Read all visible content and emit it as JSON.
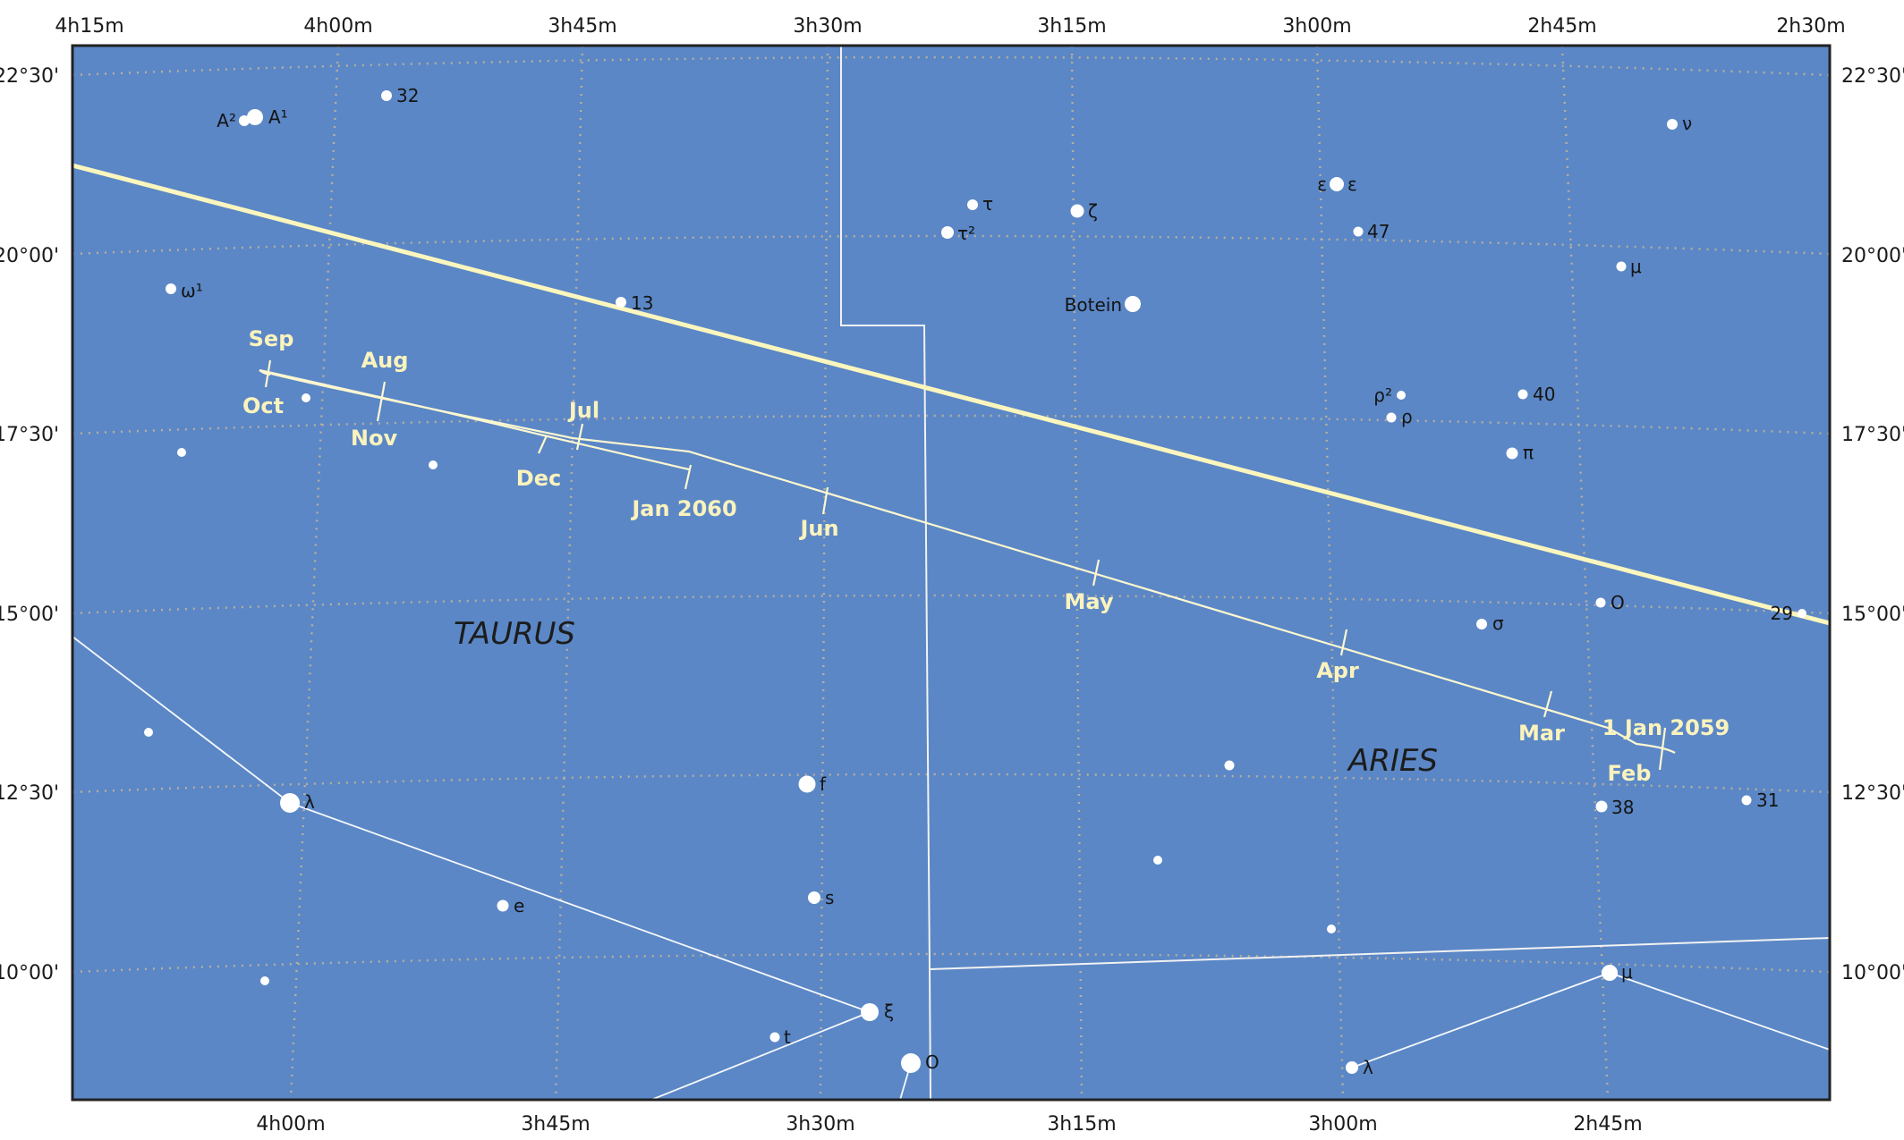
{
  "colors": {
    "sky": "#5b87c6",
    "grid": "#c8b596",
    "ecliptic": "#fbf6bd",
    "path": "#fdf7d0",
    "boundary": "#f2f2f2",
    "star": "#ffffff",
    "text": "#141414",
    "month": "#fbf3bd"
  },
  "ra_labels_top": [
    "4h15m",
    "4h00m",
    "3h45m",
    "3h30m",
    "3h15m",
    "3h00m",
    "2h45m",
    "2h30m"
  ],
  "ra_labels_bottom": [
    "4h00m",
    "3h45m",
    "3h30m",
    "3h15m",
    "3h00m",
    "2h45m"
  ],
  "dec_labels": [
    "22°30'",
    "20°00'",
    "17°30'",
    "15°00'",
    "12°30'",
    "10°00'"
  ],
  "constellations": [
    {
      "name": "TAURUS"
    },
    {
      "name": "ARIES"
    }
  ],
  "stars": [
    {
      "name": "A²",
      "mag": 4.8
    },
    {
      "name": "A¹",
      "mag": 4.3
    },
    {
      "name": "32",
      "mag": 5.6
    },
    {
      "name": "ω¹",
      "mag": 5.5
    },
    {
      "name": "13",
      "mag": 5.7
    },
    {
      "name": "τ",
      "mag": 5.3
    },
    {
      "name": "τ²",
      "mag": 5.1
    },
    {
      "name": "ζ",
      "mag": 4.9
    },
    {
      "name": "Botein",
      "mag": 4.3
    },
    {
      "name": "ε",
      "mag": 4.6
    },
    {
      "name": "ε",
      "mag": 4.6
    },
    {
      "name": "47",
      "mag": 5.8
    },
    {
      "name": "ν",
      "mag": 5.4
    },
    {
      "name": "μ",
      "mag": 5.7
    },
    {
      "name": "ρ²",
      "mag": 5.9
    },
    {
      "name": "ρ",
      "mag": 5.6
    },
    {
      "name": "40",
      "mag": 5.8
    },
    {
      "name": "π",
      "mag": 5.2
    },
    {
      "name": "σ",
      "mag": 5.5
    },
    {
      "name": "O",
      "mag": 5.8
    },
    {
      "name": "29",
      "mag": 6.0
    },
    {
      "name": "f",
      "mag": 4.1
    },
    {
      "name": "38",
      "mag": 5.2
    },
    {
      "name": "31",
      "mag": 5.7
    },
    {
      "name": "λ",
      "mag": 3.4
    },
    {
      "name": "s",
      "mag": 5.0
    },
    {
      "name": "e",
      "mag": 5.1
    },
    {
      "name": "ξ",
      "mag": 3.7
    },
    {
      "name": "t",
      "mag": 5.8
    },
    {
      "name": "O",
      "mag": 3.6
    },
    {
      "name": "λ",
      "mag": 4.8
    },
    {
      "name": "μ",
      "mag": 4.2
    },
    {
      "name": "",
      "mag": 6.0
    },
    {
      "name": "",
      "mag": 6.1
    },
    {
      "name": "",
      "mag": 6.2
    },
    {
      "name": "",
      "mag": 6.2
    },
    {
      "name": "",
      "mag": 6.0
    },
    {
      "name": "",
      "mag": 6.1
    },
    {
      "name": "",
      "mag": 6.1
    },
    {
      "name": "",
      "mag": 6.1
    }
  ],
  "path_labels": [
    "Sep",
    "Aug",
    "Oct",
    "Nov",
    "Jul",
    "Dec",
    "Jan 2060",
    "Jun",
    "May",
    "Apr",
    "Mar",
    "1 Jan 2059",
    "Feb"
  ]
}
